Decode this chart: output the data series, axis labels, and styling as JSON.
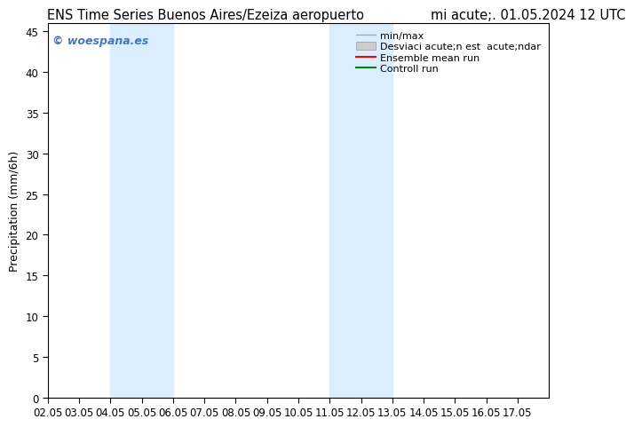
{
  "title_left": "ENS Time Series Buenos Aires/Ezeiza aeropuerto",
  "title_right": "mi acute;. 01.05.2024 12 UTC",
  "ylabel": "Precipitation (mm/6h)",
  "background_color": "#ffffff",
  "plot_bg_color": "#ffffff",
  "xlim": [
    0,
    16
  ],
  "ylim": [
    0,
    46
  ],
  "yticks": [
    0,
    5,
    10,
    15,
    20,
    25,
    30,
    35,
    40,
    45
  ],
  "xtick_labels": [
    "02.05",
    "03.05",
    "04.05",
    "05.05",
    "06.05",
    "07.05",
    "08.05",
    "09.05",
    "10.05",
    "11.05",
    "12.05",
    "13.05",
    "14.05",
    "15.05",
    "16.05",
    "17.05"
  ],
  "shaded_bands": [
    {
      "xmin": 2,
      "xmax": 4,
      "color": "#daeeff"
    },
    {
      "xmin": 9,
      "xmax": 11,
      "color": "#daeeff"
    }
  ],
  "watermark": "© woespana.es",
  "watermark_color": "#4477bb",
  "legend_line1_label": "min/max",
  "legend_line1_color": "#aaaaaa",
  "legend_patch_label": "Desviaci acute;n est  acute;ndar",
  "legend_patch_color": "#cccccc",
  "legend_line3_label": "Ensemble mean run",
  "legend_line3_color": "#ff0000",
  "legend_line4_label": "Controll run",
  "legend_line4_color": "#008800",
  "title_fontsize": 10.5,
  "axis_label_fontsize": 9,
  "tick_fontsize": 8.5,
  "legend_fontsize": 8
}
